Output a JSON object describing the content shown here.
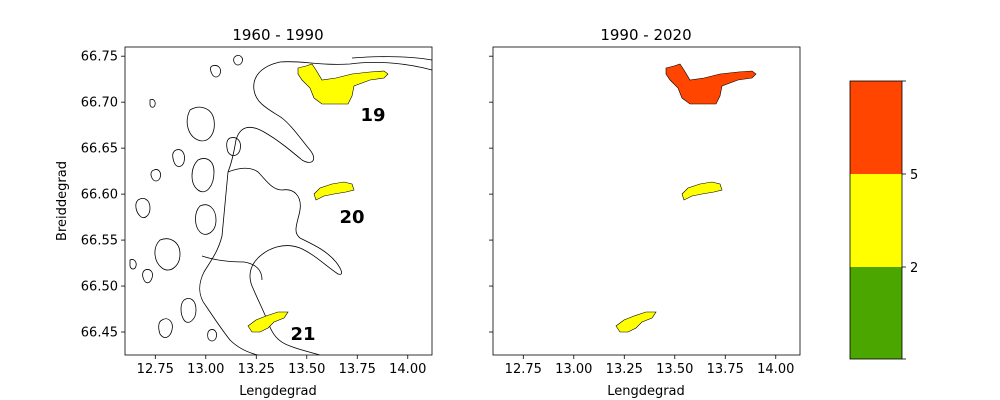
{
  "chart_data": [
    {
      "type": "map",
      "title": "1960 - 1990",
      "xlabel": "Lengdegrad",
      "ylabel": "Breiddegrad",
      "xlim": [
        12.6,
        14.12
      ],
      "ylim": [
        66.425,
        66.76
      ],
      "xticks": [
        "12.75",
        "13.00",
        "13.25",
        "13.50",
        "13.75",
        "14.00"
      ],
      "yticks": [
        "66.45",
        "66.50",
        "66.55",
        "66.60",
        "66.65",
        "66.70",
        "66.75"
      ],
      "regions": [
        {
          "id": "19",
          "label": "19",
          "lon": 13.7,
          "lat": 66.7,
          "color": "#ffff00"
        },
        {
          "id": "20",
          "label": "20",
          "lon": 13.63,
          "lat": 66.605,
          "color": "#ffff00"
        },
        {
          "id": "21",
          "label": "21",
          "lon": 13.3,
          "lat": 66.46,
          "color": "#ffff00"
        }
      ]
    },
    {
      "type": "map",
      "title": "1990 - 2020",
      "xlabel": "Lengdegrad",
      "ylabel": "",
      "xlim": [
        12.6,
        14.12
      ],
      "ylim": [
        66.425,
        66.76
      ],
      "xticks": [
        "12.75",
        "13.00",
        "13.25",
        "13.50",
        "13.75",
        "14.00"
      ],
      "yticks": [],
      "regions": [
        {
          "id": "19",
          "label": "",
          "lon": 13.7,
          "lat": 66.7,
          "color": "#ff4500"
        },
        {
          "id": "20",
          "label": "",
          "lon": 13.63,
          "lat": 66.605,
          "color": "#ffff00"
        },
        {
          "id": "21",
          "label": "",
          "lon": 13.3,
          "lat": 66.46,
          "color": "#ffff00"
        }
      ]
    }
  ],
  "colorbar": {
    "bands": [
      {
        "color": "#4ca600"
      },
      {
        "color": "#ffff00"
      },
      {
        "color": "#ff4500"
      }
    ],
    "tick_labels": [
      "2",
      "5"
    ]
  }
}
